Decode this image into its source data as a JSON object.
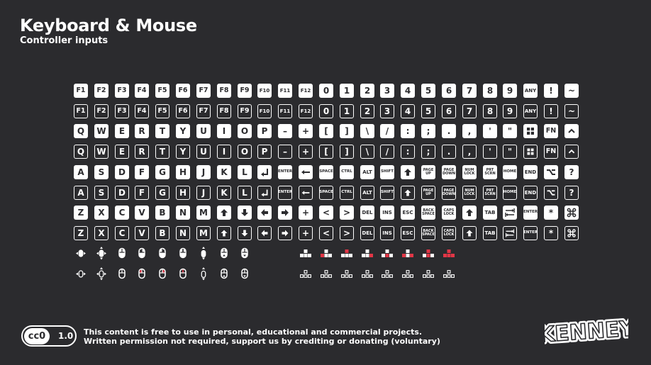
{
  "header": {
    "title": "Keyboard & Mouse",
    "subtitle": "Controller inputs"
  },
  "key_rows": [
    [
      "F1",
      "F2",
      "F3",
      "F4",
      "F5",
      "F6",
      "F7",
      "F8",
      "F9",
      "F10",
      "F11",
      "F12",
      "0",
      "1",
      "2",
      "3",
      "4",
      "5",
      "6",
      "7",
      "8",
      "9",
      "ANY",
      "!",
      "~"
    ],
    [
      "Q",
      "W",
      "E",
      "R",
      "T",
      "Y",
      "U",
      "I",
      "O",
      "P",
      "–",
      "+",
      "[",
      "]",
      "\\",
      "/",
      ":",
      ";",
      ".",
      ",",
      "'",
      "\"",
      "windows-icon",
      "FN",
      "caret-up-icon"
    ],
    [
      "A",
      "S",
      "D",
      "F",
      "G",
      "H",
      "J",
      "K",
      "L",
      "return-icon",
      "ENTER",
      "arrow-long-left-icon",
      "SPACE",
      "CTRL",
      "ALT",
      "SHIFT",
      "up-arrow-icon",
      "PAGE UP",
      "PAGE DOWN",
      "NUM LOCK",
      "PRT SCRN",
      "HOME",
      "END",
      "option-icon",
      "?"
    ],
    [
      "Z",
      "X",
      "C",
      "V",
      "B",
      "N",
      "M",
      "up-arrow-icon",
      "down-arrow-icon",
      "left-arrow-icon",
      "right-arrow-icon",
      "+",
      "<",
      ">",
      "DEL",
      "INS",
      "ESC",
      "BACK SPACE",
      "CAPS LOCK",
      "shift-up-icon",
      "TAB",
      "tab-arrows-icon",
      "ENTER",
      "*",
      "command-icon"
    ]
  ],
  "mouse_icons": [
    "mouse-horizontal-icon",
    "mouse-move-icon",
    "mouse-icon",
    "mouse-left-icon",
    "mouse-right-icon",
    "mouse-scroll-icon",
    "mouse-scroll-vertical-icon",
    "mouse-scroll-up-icon",
    "mouse-scroll-down-icon"
  ],
  "arrow_cluster_icons": [
    "arrow-keys-icon",
    "arrow-keys-left-icon",
    "arrow-keys-up-icon",
    "arrow-keys-right-icon",
    "arrow-keys-down-icon",
    "arrow-keys-horizontal-icon",
    "arrow-keys-vertical-icon",
    "arrow-keys-all-icon"
  ],
  "license": {
    "badge": "cc0",
    "version": "1.0",
    "line1": "This content is free to use in personal, educational and commercial projects.",
    "line2": "Written permission not required, support us by crediting or donating (voluntary)"
  },
  "logo": {
    "text": "KENNEY"
  },
  "colors": {
    "background": "#2b2b2e",
    "foreground": "#ffffff",
    "accent": "#e23646"
  }
}
